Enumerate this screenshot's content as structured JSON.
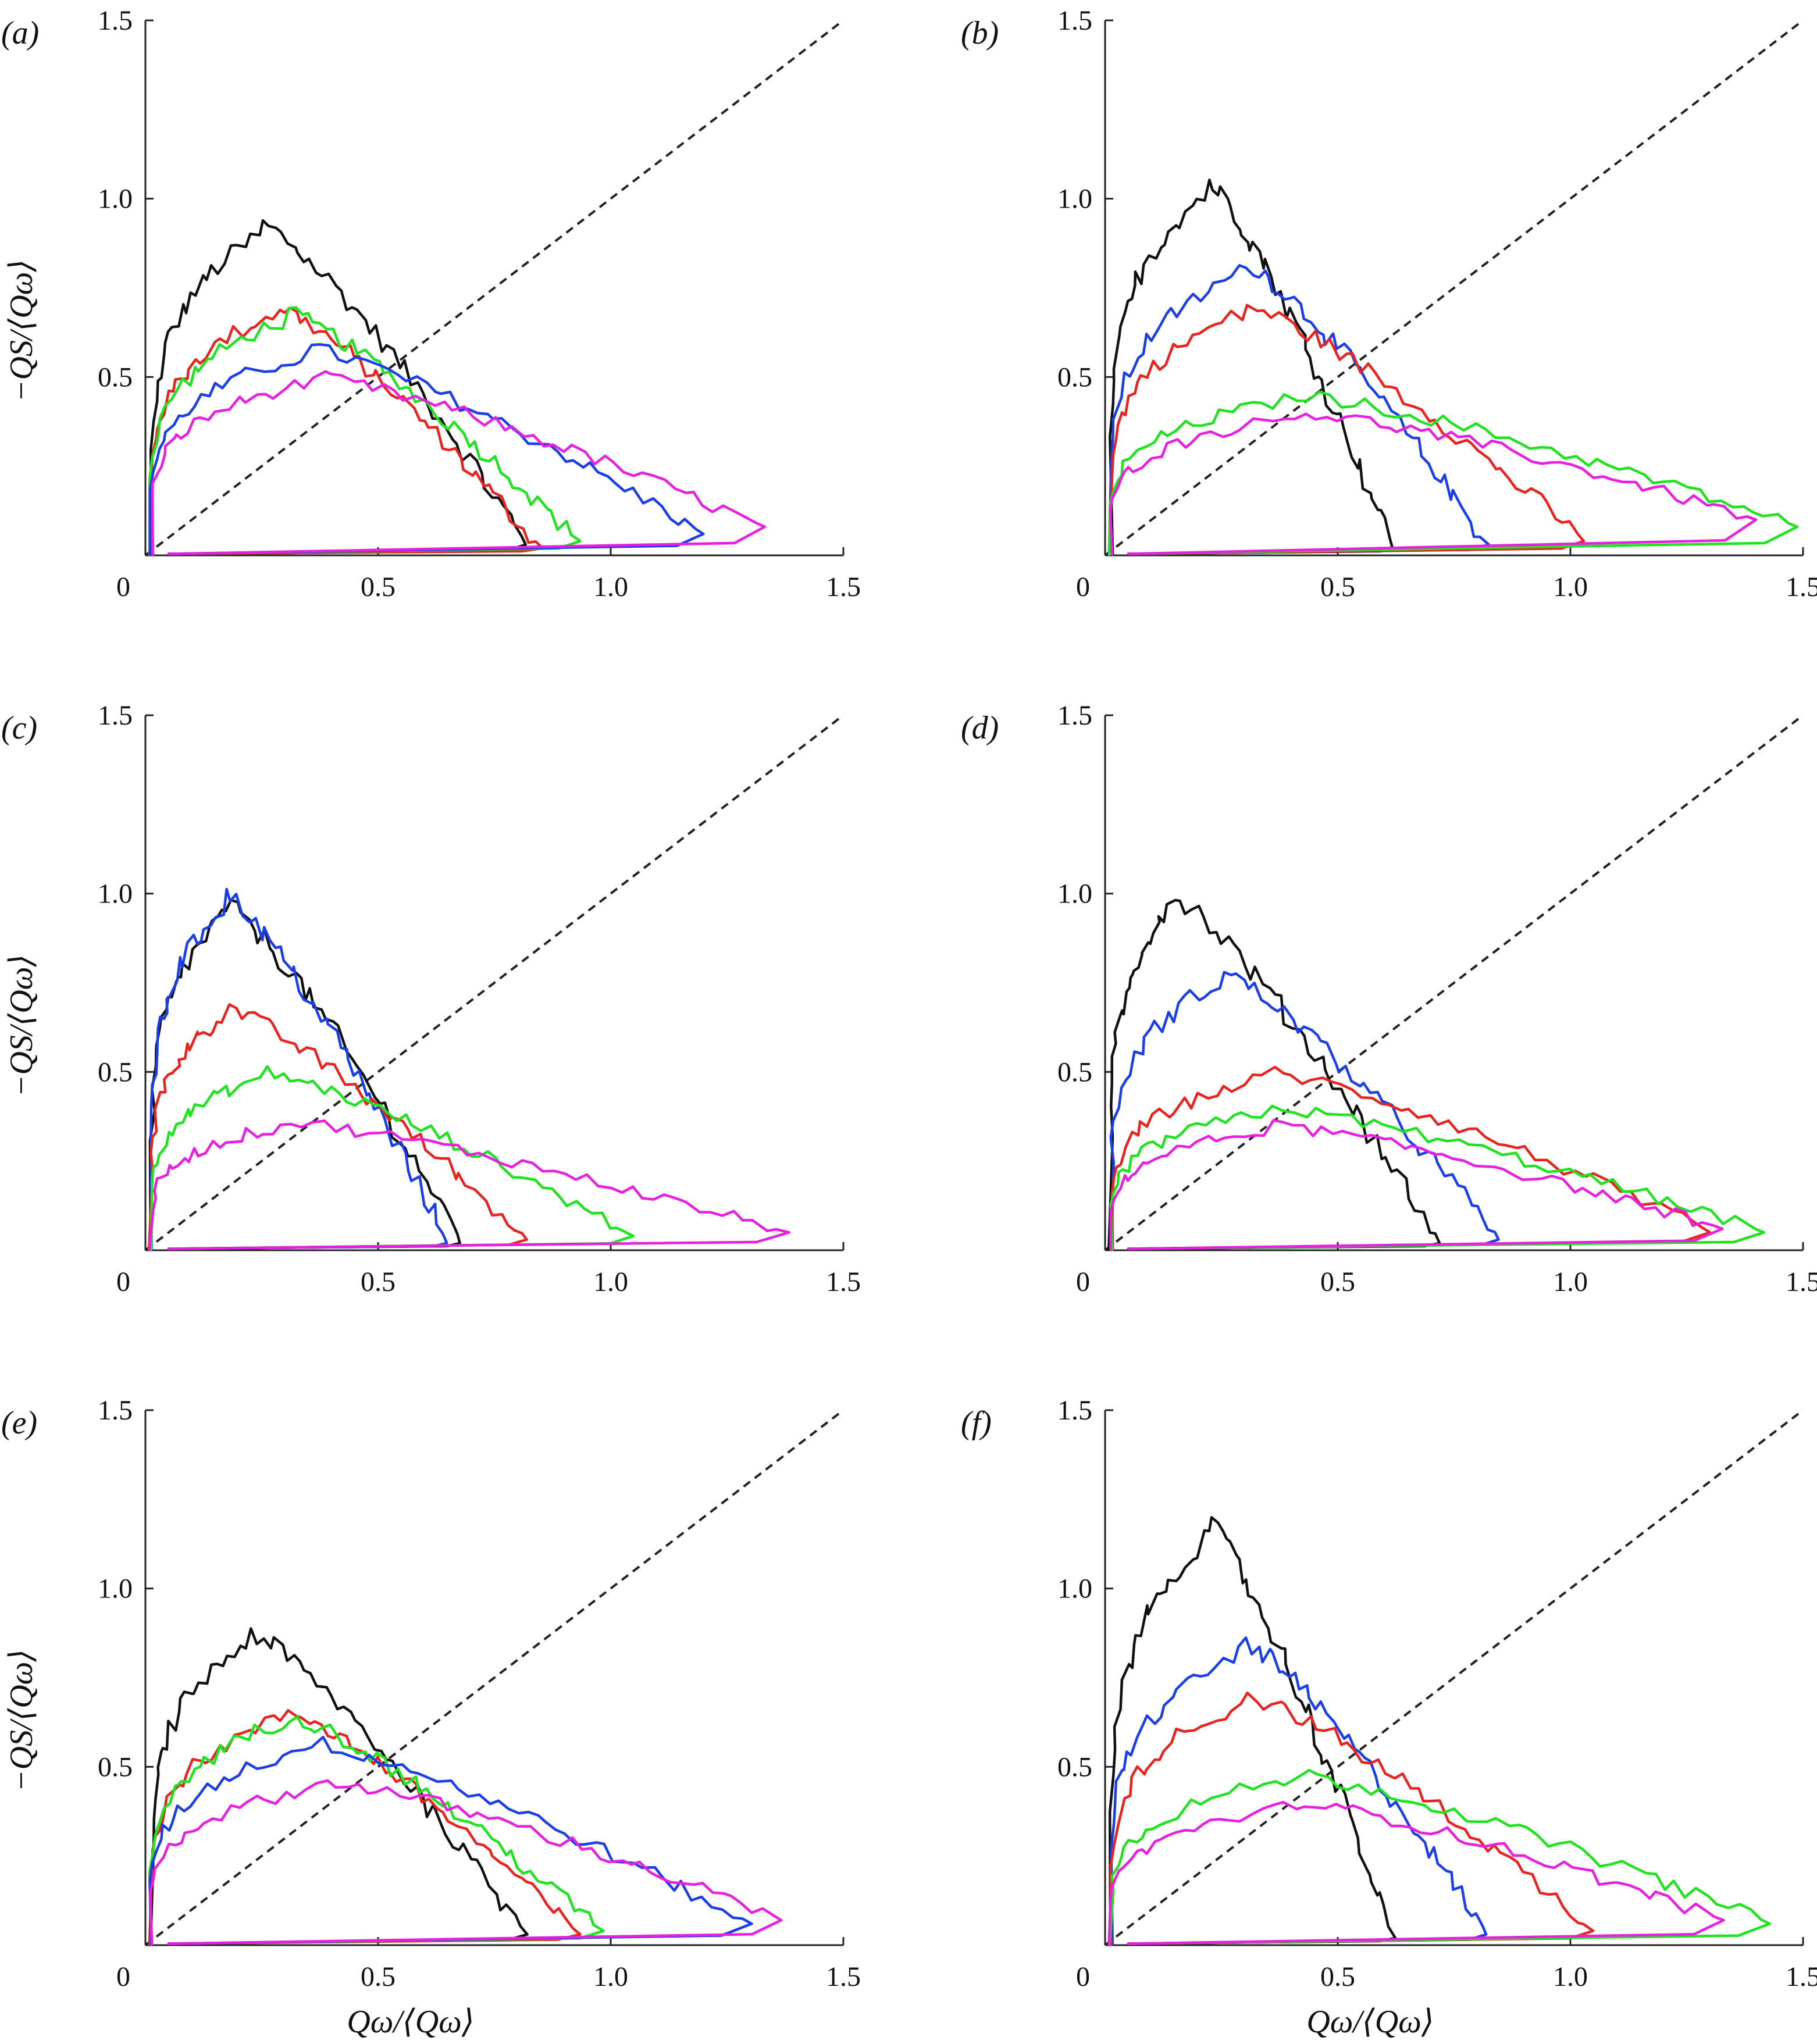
{
  "figure": {
    "xlabel": "Qω/⟨Qω⟩",
    "ylabel": "−QS/⟨Qω⟩"
  },
  "colors": {
    "black": "#111111",
    "red": "#e8241f",
    "green": "#1fe31f",
    "blue": "#1a3ee8",
    "magenta": "#e81fe0"
  },
  "chart_data": [
    {
      "type": "line",
      "panel_label": "(a)",
      "xlabel": "",
      "ylabel": "−QS/⟨Qω⟩",
      "xlim": [
        0,
        1.5
      ],
      "ylim": [
        0,
        1.5
      ],
      "xticks": [
        "0",
        "0.5",
        "1.0",
        "1.5"
      ],
      "yticks": [
        "0.5",
        "1.0",
        "1.5"
      ],
      "reference_line": "y = x (dashed)",
      "series": [
        {
          "name": "black",
          "peak": [
            0.25,
            0.93
          ],
          "x_extent": 0.82,
          "tail": 0.03
        },
        {
          "name": "red",
          "peak": [
            0.28,
            0.7
          ],
          "x_extent": 0.85,
          "tail": 0.02
        },
        {
          "name": "green",
          "peak": [
            0.3,
            0.68
          ],
          "x_extent": 0.93,
          "tail": 0.04
        },
        {
          "name": "blue",
          "peak": [
            0.35,
            0.58
          ],
          "x_extent": 1.2,
          "tail": 0.06
        },
        {
          "name": "magenta",
          "peak": [
            0.35,
            0.5
          ],
          "x_extent": 1.33,
          "tail": 0.08
        }
      ]
    },
    {
      "type": "line",
      "panel_label": "(b)",
      "xlabel": "",
      "ylabel": "",
      "xlim": [
        0,
        1.5
      ],
      "ylim": [
        0,
        1.5
      ],
      "xticks": [
        "0",
        "0.5",
        "1.0",
        "1.5"
      ],
      "yticks": [
        "0.5",
        "1.0",
        "1.5"
      ],
      "reference_line": "y = x (dashed)",
      "series": [
        {
          "name": "black",
          "peak": [
            0.22,
            1.05
          ],
          "x_extent": 0.62,
          "tail": 0.02
        },
        {
          "name": "blue",
          "peak": [
            0.3,
            0.82
          ],
          "x_extent": 0.82,
          "tail": 0.03
        },
        {
          "name": "red",
          "peak": [
            0.3,
            0.7
          ],
          "x_extent": 1.03,
          "tail": 0.04
        },
        {
          "name": "green",
          "peak": [
            0.4,
            0.45
          ],
          "x_extent": 1.49,
          "tail": 0.08
        },
        {
          "name": "magenta",
          "peak": [
            0.4,
            0.4
          ],
          "x_extent": 1.4,
          "tail": 0.1
        }
      ]
    },
    {
      "type": "line",
      "panel_label": "(c)",
      "xlabel": "",
      "ylabel": "−QS/⟨Qω⟩",
      "xlim": [
        0,
        1.5
      ],
      "ylim": [
        0,
        1.5
      ],
      "xticks": [
        "0",
        "0.5",
        "1.0",
        "1.5"
      ],
      "yticks": [
        "0.5",
        "1.0",
        "1.5"
      ],
      "reference_line": "y = x (dashed)",
      "series": [
        {
          "name": "black",
          "peak": [
            0.17,
            0.97
          ],
          "x_extent": 0.68,
          "tail": 0.02
        },
        {
          "name": "blue",
          "peak": [
            0.17,
            1.0
          ],
          "x_extent": 0.65,
          "tail": 0.02
        },
        {
          "name": "red",
          "peak": [
            0.17,
            0.68
          ],
          "x_extent": 0.82,
          "tail": 0.03
        },
        {
          "name": "green",
          "peak": [
            0.25,
            0.5
          ],
          "x_extent": 1.05,
          "tail": 0.04
        },
        {
          "name": "magenta",
          "peak": [
            0.3,
            0.36
          ],
          "x_extent": 1.38,
          "tail": 0.05
        }
      ]
    },
    {
      "type": "line",
      "panel_label": "(d)",
      "xlabel": "",
      "ylabel": "",
      "xlim": [
        0,
        1.5
      ],
      "ylim": [
        0,
        1.5
      ],
      "xticks": [
        "0",
        "0.5",
        "1.0",
        "1.5"
      ],
      "yticks": [
        "0.5",
        "1.0",
        "1.5"
      ],
      "reference_line": "y = x (dashed)",
      "series": [
        {
          "name": "black",
          "peak": [
            0.14,
            1.0
          ],
          "x_extent": 0.72,
          "tail": 0.02
        },
        {
          "name": "blue",
          "peak": [
            0.25,
            0.78
          ],
          "x_extent": 0.85,
          "tail": 0.03
        },
        {
          "name": "red",
          "peak": [
            0.35,
            0.5
          ],
          "x_extent": 1.3,
          "tail": 0.05
        },
        {
          "name": "green",
          "peak": [
            0.35,
            0.4
          ],
          "x_extent": 1.42,
          "tail": 0.05
        },
        {
          "name": "magenta",
          "peak": [
            0.35,
            0.35
          ],
          "x_extent": 1.33,
          "tail": 0.06
        }
      ]
    },
    {
      "type": "line",
      "panel_label": "(e)",
      "xlabel": "Qω/⟨Qω⟩",
      "ylabel": "−QS/⟨Qω⟩",
      "xlim": [
        0,
        1.5
      ],
      "ylim": [
        0,
        1.5
      ],
      "xticks": [
        "0",
        "0.5",
        "1.0",
        "1.5"
      ],
      "yticks": [
        "0.5",
        "1.0",
        "1.5"
      ],
      "reference_line": "y = x (dashed)",
      "series": [
        {
          "name": "black",
          "peak": [
            0.22,
            0.88
          ],
          "x_extent": 0.82,
          "tail": 0.03
        },
        {
          "name": "red",
          "peak": [
            0.3,
            0.66
          ],
          "x_extent": 0.93,
          "tail": 0.03
        },
        {
          "name": "green",
          "peak": [
            0.3,
            0.65
          ],
          "x_extent": 0.98,
          "tail": 0.04
        },
        {
          "name": "blue",
          "peak": [
            0.35,
            0.57
          ],
          "x_extent": 1.3,
          "tail": 0.06
        },
        {
          "name": "magenta",
          "peak": [
            0.38,
            0.46
          ],
          "x_extent": 1.37,
          "tail": 0.07
        }
      ]
    },
    {
      "type": "line",
      "panel_label": "(f)",
      "xlabel": "Qω/⟨Qω⟩",
      "ylabel": "",
      "xlim": [
        0,
        1.5
      ],
      "ylim": [
        0,
        1.5
      ],
      "xticks": [
        "0",
        "0.5",
        "1.0",
        "1.5"
      ],
      "yticks": [
        "0.5",
        "1.0",
        "1.5"
      ],
      "reference_line": "y = x (dashed)",
      "series": [
        {
          "name": "black",
          "peak": [
            0.22,
            1.18
          ],
          "x_extent": 0.62,
          "tail": 0.02
        },
        {
          "name": "blue",
          "peak": [
            0.3,
            0.85
          ],
          "x_extent": 0.82,
          "tail": 0.03
        },
        {
          "name": "red",
          "peak": [
            0.3,
            0.7
          ],
          "x_extent": 1.05,
          "tail": 0.04
        },
        {
          "name": "green",
          "peak": [
            0.4,
            0.48
          ],
          "x_extent": 1.43,
          "tail": 0.06
        },
        {
          "name": "magenta",
          "peak": [
            0.4,
            0.4
          ],
          "x_extent": 1.33,
          "tail": 0.07
        }
      ]
    }
  ]
}
